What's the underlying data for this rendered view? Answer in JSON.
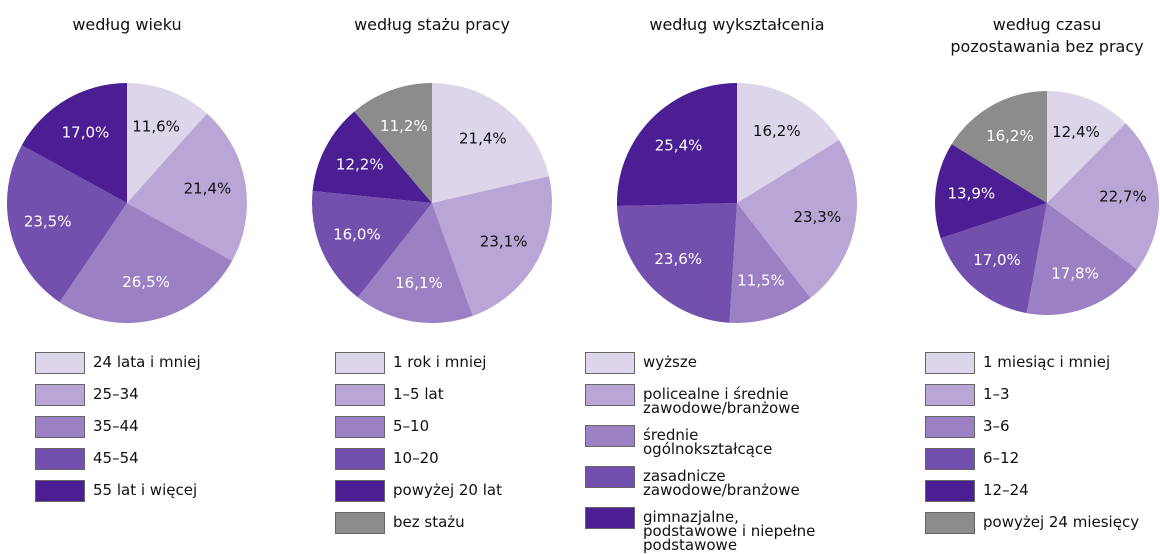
{
  "chart_data": [
    {
      "type": "pie",
      "title": "według wieku",
      "categories": [
        "24 lata i mniej",
        "25–34",
        "35–44",
        "45–54",
        "55 lat i więcej"
      ],
      "values": [
        11.6,
        21.4,
        26.5,
        23.5,
        17.0
      ],
      "value_labels": [
        "11,6%",
        "21,4%",
        "26,5%",
        "23,5%",
        "17,0%"
      ],
      "colors": [
        "#ddd5ea",
        "#b9a6d6",
        "#9b80c4",
        "#7450ae",
        "#4b1f93"
      ]
    },
    {
      "type": "pie",
      "title": "według stażu pracy",
      "categories": [
        "1 rok i mniej",
        "1–5 lat",
        "5–10",
        "10–20",
        "powyżej 20 lat",
        "bez stażu"
      ],
      "values": [
        21.4,
        23.1,
        16.1,
        16.0,
        12.2,
        11.2
      ],
      "value_labels": [
        "21,4%",
        "23,1%",
        "16,1%",
        "16,0%",
        "12,2%",
        "11,2%"
      ],
      "colors": [
        "#ddd5ea",
        "#b9a6d6",
        "#9b80c4",
        "#7450ae",
        "#4b1f93",
        "#8c8c8c"
      ]
    },
    {
      "type": "pie",
      "title": "według wykształcenia",
      "categories": [
        "wyższe",
        "policealne i średnie zawodowe/branżowe",
        "średnie ogólnokształcące",
        "zasadnicze zawodowe/branżowe",
        "gimnazjalne, podstawowe i niepełne podstawowe"
      ],
      "values": [
        16.2,
        23.3,
        11.5,
        23.6,
        25.4
      ],
      "value_labels": [
        "16,2%",
        "23,3%",
        "11,5%",
        "23,6%",
        "25,4%"
      ],
      "colors": [
        "#ddd5ea",
        "#b9a6d6",
        "#9b80c4",
        "#7450ae",
        "#4b1f93"
      ]
    },
    {
      "type": "pie",
      "title": "według czasu pozostawania bez pracy",
      "categories": [
        "1 miesiąc i mniej",
        "1–3",
        "3–6",
        "6–12",
        "12–24",
        "powyżej 24 miesięcy"
      ],
      "values": [
        12.4,
        22.7,
        17.8,
        17.0,
        13.9,
        16.2
      ],
      "value_labels": [
        "12,4%",
        "22,7%",
        "17,8%",
        "17,0%",
        "13,9%",
        "16,2%"
      ],
      "colors": [
        "#ddd5ea",
        "#b9a6d6",
        "#9b80c4",
        "#7450ae",
        "#4b1f93",
        "#8c8c8c"
      ]
    }
  ]
}
